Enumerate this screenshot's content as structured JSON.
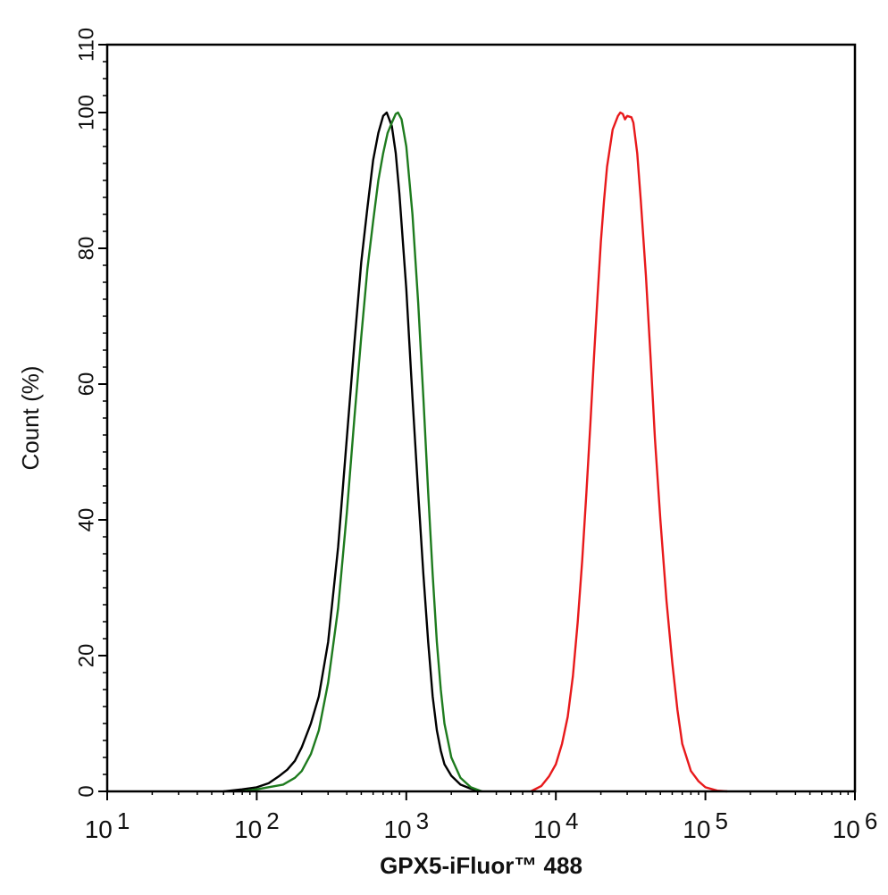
{
  "chart_data": {
    "type": "line",
    "title": "",
    "xlabel": "GPX5-iFluor™ 488",
    "ylabel": "Count  (%)",
    "xscale": "log",
    "xlim": [
      10,
      1000000
    ],
    "ylim": [
      0,
      110
    ],
    "x_ticks": [
      {
        "value": 10,
        "base": "10",
        "exp": "1"
      },
      {
        "value": 100,
        "base": "10",
        "exp": "2"
      },
      {
        "value": 1000,
        "base": "10",
        "exp": "3"
      },
      {
        "value": 10000,
        "base": "10",
        "exp": "4"
      },
      {
        "value": 100000,
        "base": "10",
        "exp": "5"
      },
      {
        "value": 1000000,
        "base": "10",
        "exp": "6"
      }
    ],
    "y_ticks": [
      0,
      20,
      40,
      60,
      80,
      100,
      110
    ],
    "grid": false,
    "legend": "none",
    "series": [
      {
        "color": "#000000",
        "points": [
          [
            60,
            0
          ],
          [
            80,
            0.3
          ],
          [
            100,
            0.6
          ],
          [
            120,
            1.2
          ],
          [
            140,
            2.2
          ],
          [
            160,
            3.2
          ],
          [
            180,
            4.5
          ],
          [
            200,
            6.5
          ],
          [
            230,
            10
          ],
          [
            260,
            14
          ],
          [
            300,
            22
          ],
          [
            350,
            36
          ],
          [
            400,
            52
          ],
          [
            450,
            66
          ],
          [
            500,
            78
          ],
          [
            550,
            86
          ],
          [
            600,
            93
          ],
          [
            650,
            97
          ],
          [
            700,
            99.5
          ],
          [
            740,
            100
          ],
          [
            800,
            98
          ],
          [
            850,
            94
          ],
          [
            900,
            88
          ],
          [
            1000,
            74
          ],
          [
            1100,
            58
          ],
          [
            1200,
            44
          ],
          [
            1300,
            32
          ],
          [
            1400,
            22
          ],
          [
            1500,
            14
          ],
          [
            1600,
            9
          ],
          [
            1700,
            6
          ],
          [
            1800,
            4
          ],
          [
            2000,
            2.3
          ],
          [
            2300,
            1
          ],
          [
            2700,
            0.4
          ],
          [
            3200,
            0
          ]
        ]
      },
      {
        "color": "#1e7b1e",
        "points": [
          [
            80,
            0
          ],
          [
            100,
            0.3
          ],
          [
            150,
            1
          ],
          [
            180,
            2
          ],
          [
            200,
            3
          ],
          [
            230,
            5.5
          ],
          [
            260,
            9
          ],
          [
            300,
            16
          ],
          [
            350,
            27
          ],
          [
            400,
            41
          ],
          [
            450,
            55
          ],
          [
            500,
            67
          ],
          [
            550,
            77
          ],
          [
            600,
            84
          ],
          [
            650,
            90
          ],
          [
            700,
            94
          ],
          [
            750,
            97
          ],
          [
            800,
            98.5
          ],
          [
            850,
            99.8
          ],
          [
            880,
            100
          ],
          [
            930,
            99
          ],
          [
            1000,
            95
          ],
          [
            1100,
            85
          ],
          [
            1200,
            72
          ],
          [
            1300,
            58
          ],
          [
            1400,
            44
          ],
          [
            1500,
            32
          ],
          [
            1600,
            22
          ],
          [
            1700,
            15
          ],
          [
            1800,
            10
          ],
          [
            2000,
            5
          ],
          [
            2300,
            2
          ],
          [
            2700,
            0.6
          ],
          [
            3200,
            0
          ]
        ]
      },
      {
        "color": "#e8191b",
        "points": [
          [
            6800,
            0
          ],
          [
            8000,
            0.8
          ],
          [
            9000,
            2.2
          ],
          [
            10000,
            4
          ],
          [
            11000,
            7
          ],
          [
            12000,
            11
          ],
          [
            13000,
            17
          ],
          [
            14000,
            25
          ],
          [
            15000,
            34
          ],
          [
            16000,
            44
          ],
          [
            17000,
            54
          ],
          [
            18000,
            64
          ],
          [
            19000,
            73
          ],
          [
            20000,
            81
          ],
          [
            21000,
            87
          ],
          [
            22000,
            92
          ],
          [
            24000,
            97.5
          ],
          [
            26000,
            99.5
          ],
          [
            27000,
            100
          ],
          [
            28000,
            99.8
          ],
          [
            29000,
            99
          ],
          [
            30000,
            99.5
          ],
          [
            32000,
            99.3
          ],
          [
            33000,
            98.5
          ],
          [
            35000,
            94
          ],
          [
            37000,
            87
          ],
          [
            40000,
            76
          ],
          [
            43000,
            64
          ],
          [
            46000,
            52
          ],
          [
            50000,
            40
          ],
          [
            55000,
            28
          ],
          [
            60000,
            19
          ],
          [
            65000,
            12
          ],
          [
            70000,
            7
          ],
          [
            80000,
            3
          ],
          [
            90000,
            1.5
          ],
          [
            100000,
            0.6
          ],
          [
            120000,
            0.1
          ],
          [
            140000,
            0
          ]
        ]
      }
    ]
  }
}
